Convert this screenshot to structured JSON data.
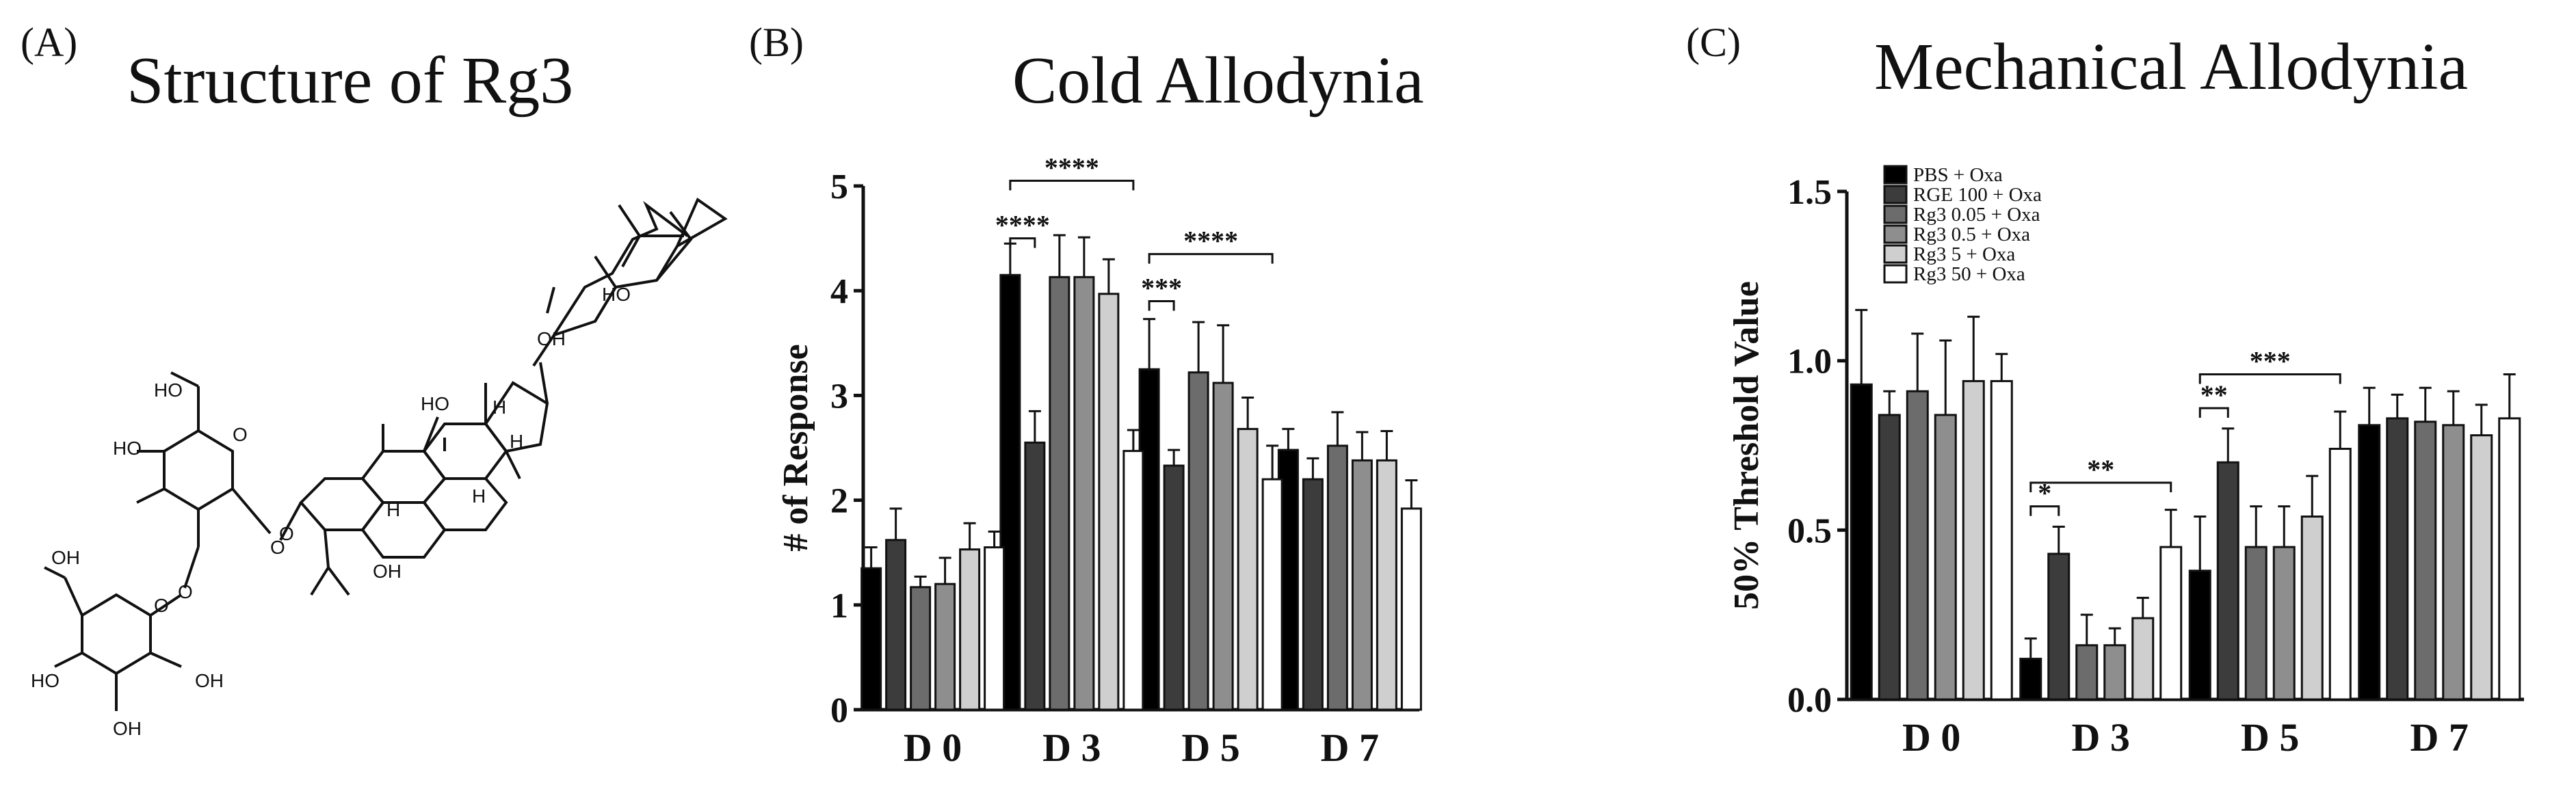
{
  "figure": {
    "panel_a": {
      "letter": "(A)",
      "title": "Structure of Rg3"
    },
    "panel_b": {
      "letter": "(B)",
      "title": "Cold Allodynia"
    },
    "panel_c": {
      "letter": "(C)",
      "title": "Mechanical Allodynia"
    }
  },
  "structure": {
    "labels": [
      "OH",
      "HO",
      "H",
      "H",
      "H",
      "HO",
      "HO",
      "O",
      "O",
      "HO",
      "O",
      "OH",
      "O",
      "O",
      "OH",
      "HO",
      "OH",
      "OH",
      "H"
    ]
  },
  "colors": [
    "#000000",
    "#3c3c3c",
    "#6c6c6c",
    "#8e8e8e",
    "#cfcfcf",
    "#ffffff"
  ],
  "chart_data": [
    {
      "type": "bar",
      "title": "Cold Allodynia",
      "ylabel": "# of Response",
      "xlabel": "",
      "categories": [
        "D 0",
        "D 3",
        "D 5",
        "D 7"
      ],
      "ylim": [
        0,
        5
      ],
      "yticks": [
        "0",
        "1",
        "2",
        "3",
        "4",
        "5"
      ],
      "series": [
        {
          "name": "PBS + Oxa",
          "values": [
            1.35,
            4.15,
            3.25,
            2.48
          ],
          "errors": [
            0.2,
            0.3,
            0.48,
            0.2
          ]
        },
        {
          "name": "RGE 100 + Oxa",
          "values": [
            1.62,
            2.55,
            2.33,
            2.2
          ],
          "errors": [
            0.3,
            0.3,
            0.15,
            0.2
          ]
        },
        {
          "name": "Rg3 0.05 + Oxa",
          "values": [
            1.17,
            4.13,
            3.22,
            2.52
          ],
          "errors": [
            0.1,
            0.4,
            0.48,
            0.32
          ]
        },
        {
          "name": "Rg3 0.5 + Oxa",
          "values": [
            1.2,
            4.13,
            3.12,
            2.38
          ],
          "errors": [
            0.25,
            0.38,
            0.55,
            0.27
          ]
        },
        {
          "name": "Rg3 5 + Oxa",
          "values": [
            1.53,
            3.97,
            2.68,
            2.38
          ],
          "errors": [
            0.25,
            0.33,
            0.3,
            0.28
          ]
        },
        {
          "name": "Rg3 50 + Oxa",
          "values": [
            1.55,
            2.47,
            2.2,
            1.92
          ],
          "errors": [
            0.15,
            0.2,
            0.32,
            0.27
          ]
        }
      ],
      "significance": [
        {
          "category": "D 3",
          "from": 0,
          "to": 1,
          "label": "****",
          "y": 4.5
        },
        {
          "category": "D 3",
          "from": 0,
          "to": 5,
          "label": "****",
          "y": 5.05
        },
        {
          "category": "D 5",
          "from": 0,
          "to": 1,
          "label": "***",
          "y": 3.9
        },
        {
          "category": "D 5",
          "from": 0,
          "to": 5,
          "label": "****",
          "y": 4.35
        }
      ]
    },
    {
      "type": "bar",
      "title": "Mechanical Allodynia",
      "ylabel": "50% Threshold Value",
      "xlabel": "",
      "categories": [
        "D 0",
        "D 3",
        "D 5",
        "D 7"
      ],
      "ylim": [
        0,
        1.5
      ],
      "yticks": [
        "0.0",
        "0.5",
        "1.0",
        "1.5"
      ],
      "legend_position": "top-left",
      "series": [
        {
          "name": "PBS + Oxa",
          "values": [
            0.93,
            0.12,
            0.38,
            0.81
          ],
          "errors": [
            0.22,
            0.06,
            0.16,
            0.11
          ]
        },
        {
          "name": "RGE 100 + Oxa",
          "values": [
            0.84,
            0.43,
            0.7,
            0.83
          ],
          "errors": [
            0.07,
            0.08,
            0.1,
            0.07
          ]
        },
        {
          "name": "Rg3 0.05 + Oxa",
          "values": [
            0.91,
            0.16,
            0.45,
            0.82
          ],
          "errors": [
            0.17,
            0.09,
            0.12,
            0.1
          ]
        },
        {
          "name": "Rg3 0.5 + Oxa",
          "values": [
            0.84,
            0.16,
            0.45,
            0.81
          ],
          "errors": [
            0.22,
            0.05,
            0.12,
            0.1
          ]
        },
        {
          "name": "Rg3 5 + Oxa",
          "values": [
            0.94,
            0.24,
            0.54,
            0.78
          ],
          "errors": [
            0.19,
            0.06,
            0.12,
            0.09
          ]
        },
        {
          "name": "Rg3 50 + Oxa",
          "values": [
            0.94,
            0.45,
            0.74,
            0.83
          ],
          "errors": [
            0.08,
            0.11,
            0.11,
            0.13
          ]
        }
      ],
      "significance": [
        {
          "category": "D 3",
          "from": 0,
          "to": 1,
          "label": "*",
          "y": 0.57
        },
        {
          "category": "D 3",
          "from": 0,
          "to": 5,
          "label": "**",
          "y": 0.64
        },
        {
          "category": "D 5",
          "from": 0,
          "to": 1,
          "label": "**",
          "y": 0.86
        },
        {
          "category": "D 5",
          "from": 0,
          "to": 5,
          "label": "***",
          "y": 0.96
        }
      ]
    }
  ]
}
